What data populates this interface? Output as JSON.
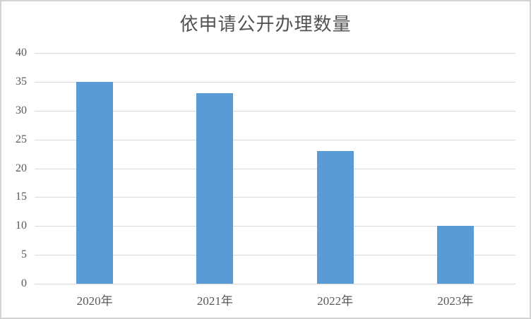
{
  "chart_data": {
    "type": "bar",
    "title": "依申请公开办理数量",
    "categories": [
      "2020年",
      "2021年",
      "2022年",
      "2023年"
    ],
    "values": [
      35,
      33,
      23,
      10
    ],
    "series": [
      {
        "name": "依申请公开办理数量",
        "values": [
          35,
          33,
          23,
          10
        ]
      }
    ],
    "xlabel": "",
    "ylabel": "",
    "ylim": [
      0,
      40
    ],
    "yticks": [
      0,
      5,
      10,
      15,
      20,
      25,
      30,
      35,
      40
    ],
    "grid": "horizontal",
    "legend": "none",
    "colors": {
      "bar": "#5b9bd5",
      "gridline": "#d9d9d9",
      "tick_label": "#595959",
      "title": "#535353",
      "frame_border": "#d3d3d3",
      "background": "#ffffff"
    }
  }
}
